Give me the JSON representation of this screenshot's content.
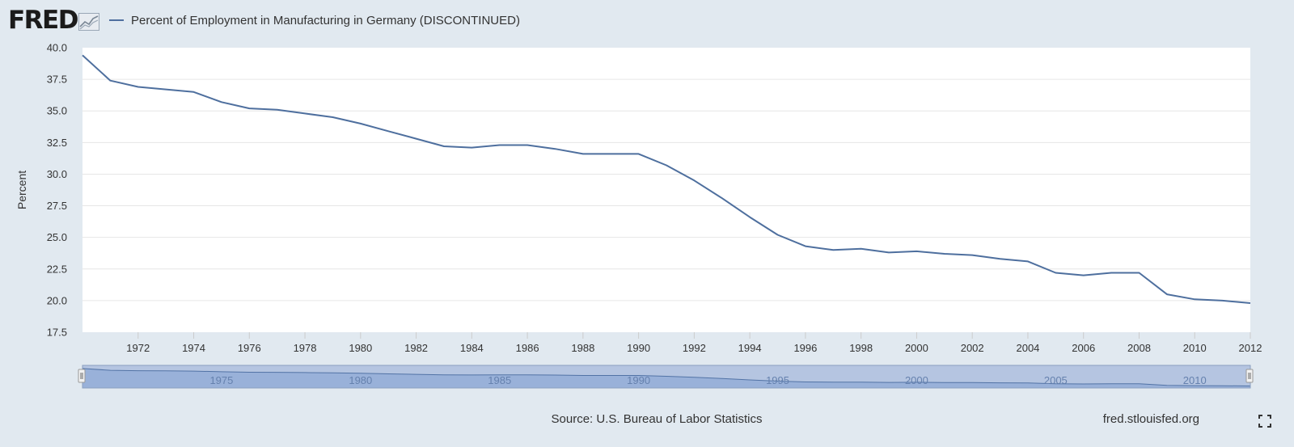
{
  "header": {
    "logo_text": "FRED",
    "logo_icon": "line-graph-icon",
    "legend_label": "Percent of Employment in Manufacturing in Germany (DISCONTINUED)"
  },
  "footer": {
    "source": "Source: U.S. Bureau of Labor Statistics",
    "site": "fred.stlouisfed.org",
    "fullscreen_icon": "fullscreen-icon"
  },
  "colors": {
    "page_background": "#e1e9f0",
    "series_line": "#4e6f9e",
    "plot_background": "#ffffff",
    "navigator_fill": "#a8bedf"
  },
  "chart_data": {
    "type": "line",
    "title": "",
    "xlabel": "",
    "ylabel": "Percent",
    "ylim": [
      17.5,
      40.0
    ],
    "yticks": [
      "17.5",
      "20.0",
      "22.5",
      "25.0",
      "27.5",
      "30.0",
      "32.5",
      "35.0",
      "37.5",
      "40.0"
    ],
    "xticks": [
      "1972",
      "1974",
      "1976",
      "1978",
      "1980",
      "1982",
      "1984",
      "1986",
      "1988",
      "1990",
      "1992",
      "1994",
      "1996",
      "1998",
      "2000",
      "2002",
      "2004",
      "2006",
      "2008",
      "2010",
      "2012"
    ],
    "xlim": [
      1970,
      2012
    ],
    "grid": true,
    "legend": "top-left",
    "x": [
      1970,
      1971,
      1972,
      1973,
      1974,
      1975,
      1976,
      1977,
      1978,
      1979,
      1980,
      1981,
      1982,
      1983,
      1984,
      1985,
      1986,
      1987,
      1988,
      1989,
      1990,
      1991,
      1992,
      1993,
      1994,
      1995,
      1996,
      1997,
      1998,
      1999,
      2000,
      2001,
      2002,
      2003,
      2004,
      2005,
      2006,
      2007,
      2008,
      2009,
      2010,
      2011,
      2012
    ],
    "series": [
      {
        "name": "Percent of Employment in Manufacturing in Germany (DISCONTINUED)",
        "values": [
          39.4,
          37.4,
          36.9,
          36.7,
          36.5,
          35.7,
          35.2,
          35.1,
          34.8,
          34.5,
          34.0,
          33.4,
          32.8,
          32.2,
          32.1,
          32.3,
          32.3,
          32.0,
          31.6,
          31.6,
          31.6,
          30.7,
          29.5,
          28.1,
          26.6,
          25.2,
          24.3,
          24.0,
          24.1,
          23.8,
          23.9,
          23.7,
          23.6,
          23.3,
          23.1,
          22.2,
          22.0,
          22.2,
          22.2,
          20.5,
          20.1,
          20.0,
          19.8
        ]
      }
    ],
    "navigator": {
      "labels": [
        "1975",
        "1980",
        "1985",
        "1990",
        "1995",
        "2000",
        "2005",
        "2010"
      ]
    }
  }
}
